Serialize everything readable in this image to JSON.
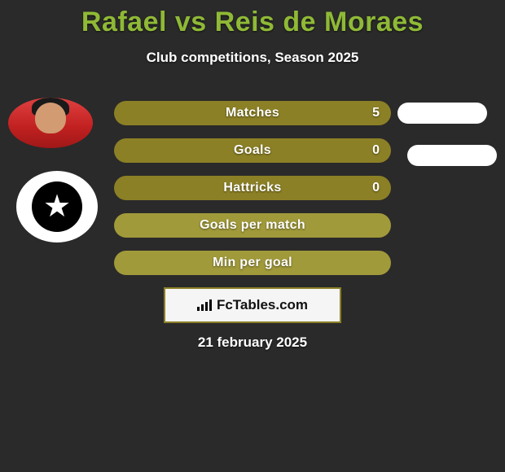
{
  "title": "Rafael vs Reis de Moraes",
  "subtitle": "Club competitions, Season 2025",
  "date": "21 february 2025",
  "logo_text": "FcTables.com",
  "colors": {
    "background": "#2a2a2a",
    "accent": "#8fb936",
    "bar_dark": "#8c8026",
    "bar_lite": "#a19a3a",
    "pill": "#ffffff"
  },
  "player_left": {
    "badge": "photo",
    "team_badge": "botafogo-star"
  },
  "stats": [
    {
      "label": "Matches",
      "value": "5",
      "style": "dark",
      "has_pill": true
    },
    {
      "label": "Goals",
      "value": "0",
      "style": "dark",
      "has_pill": true
    },
    {
      "label": "Hattricks",
      "value": "0",
      "style": "dark",
      "has_pill": false
    },
    {
      "label": "Goals per match",
      "value": "",
      "style": "lite",
      "has_pill": false
    },
    {
      "label": "Min per goal",
      "value": "",
      "style": "lite",
      "has_pill": false
    }
  ]
}
